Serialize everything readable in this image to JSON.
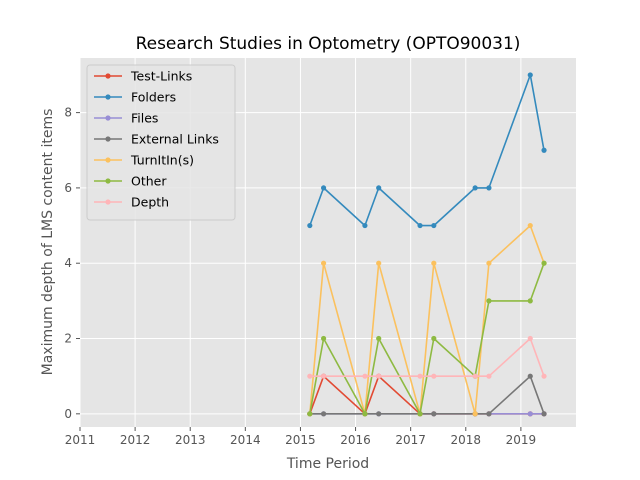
{
  "chart_data": {
    "type": "line",
    "title": "Research Studies in Optometry (OPTO90031)",
    "xlabel": "Time Period",
    "ylabel": "Maximum depth of LMS content items",
    "xlim": [
      2011,
      2020
    ],
    "ylim": [
      -0.35,
      9.45
    ],
    "xticks": [
      2011,
      2012,
      2013,
      2014,
      2015,
      2016,
      2017,
      2018,
      2019
    ],
    "yticks": [
      0,
      2,
      4,
      6,
      8
    ],
    "grid": true,
    "legend_position": "upper-left",
    "x": [
      2015.17,
      2015.42,
      2016.17,
      2016.42,
      2017.17,
      2017.42,
      2018.17,
      2018.42,
      2019.17,
      2019.42
    ],
    "series": [
      {
        "name": "Test-Links",
        "color": "#E24A33",
        "values": [
          0,
          1,
          0,
          1,
          0,
          0,
          0,
          0,
          0,
          0
        ]
      },
      {
        "name": "Folders",
        "color": "#348ABD",
        "values": [
          5,
          6,
          5,
          6,
          5,
          5,
          6,
          6,
          9,
          7
        ]
      },
      {
        "name": "Files",
        "color": "#988ED5",
        "values": [
          0,
          0,
          0,
          0,
          0,
          0,
          0,
          0,
          0,
          0
        ]
      },
      {
        "name": "External Links",
        "color": "#777777",
        "values": [
          0,
          0,
          0,
          0,
          0,
          0,
          0,
          0,
          1,
          0
        ]
      },
      {
        "name": "TurnItIn(s)",
        "color": "#FBC15E",
        "values": [
          0,
          4,
          0,
          4,
          0,
          4,
          0,
          4,
          5,
          4
        ]
      },
      {
        "name": "Other",
        "color": "#8EBA42",
        "values": [
          0,
          2,
          0,
          2,
          0,
          2,
          1,
          3,
          3,
          4
        ]
      },
      {
        "name": "Depth",
        "color": "#FFB5B8",
        "values": [
          1,
          1,
          1,
          1,
          1,
          1,
          1,
          1,
          2,
          1
        ]
      }
    ]
  }
}
